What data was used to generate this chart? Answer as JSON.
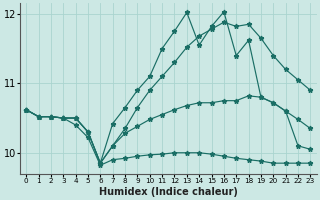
{
  "xlabel": "Humidex (Indice chaleur)",
  "background_color": "#cce8e4",
  "line_color": "#1a6e65",
  "hours": [
    0,
    1,
    2,
    3,
    4,
    5,
    6,
    7,
    8,
    9,
    10,
    11,
    12,
    13,
    14,
    15,
    16,
    17,
    18,
    19,
    20,
    21,
    22,
    23
  ],
  "line_zigzag": [
    10.62,
    10.52,
    10.52,
    10.5,
    10.5,
    10.3,
    9.85,
    10.42,
    10.65,
    10.9,
    11.1,
    11.5,
    11.75,
    12.02,
    11.55,
    11.82,
    12.03,
    11.4,
    11.62,
    10.8,
    10.72,
    10.6,
    10.1,
    10.05
  ],
  "line_trend_up": [
    10.62,
    10.52,
    10.52,
    10.5,
    10.5,
    10.3,
    9.85,
    10.1,
    10.35,
    10.65,
    10.9,
    11.1,
    11.3,
    11.52,
    11.68,
    11.78,
    11.88,
    11.82,
    11.85,
    11.65,
    11.4,
    11.2,
    11.05,
    10.9
  ],
  "line_flat": [
    10.62,
    10.52,
    10.52,
    10.5,
    10.5,
    10.3,
    9.85,
    10.1,
    10.28,
    10.38,
    10.48,
    10.55,
    10.62,
    10.68,
    10.72,
    10.72,
    10.75,
    10.75,
    10.82,
    10.8,
    10.72,
    10.6,
    10.48,
    10.35
  ],
  "line_down": [
    10.62,
    10.52,
    10.52,
    10.5,
    10.4,
    10.22,
    9.82,
    9.9,
    9.92,
    9.95,
    9.97,
    9.98,
    10.0,
    10.0,
    10.0,
    9.98,
    9.95,
    9.92,
    9.9,
    9.88,
    9.85,
    9.85,
    9.85,
    9.85
  ],
  "ylim": [
    9.7,
    12.15
  ],
  "yticks": [
    10,
    11,
    12
  ],
  "xticks": [
    0,
    1,
    2,
    3,
    4,
    5,
    6,
    7,
    8,
    9,
    10,
    11,
    12,
    13,
    14,
    15,
    16,
    17,
    18,
    19,
    20,
    21,
    22,
    23
  ],
  "grid_color": "#aad4cf",
  "markersize": 3.5
}
